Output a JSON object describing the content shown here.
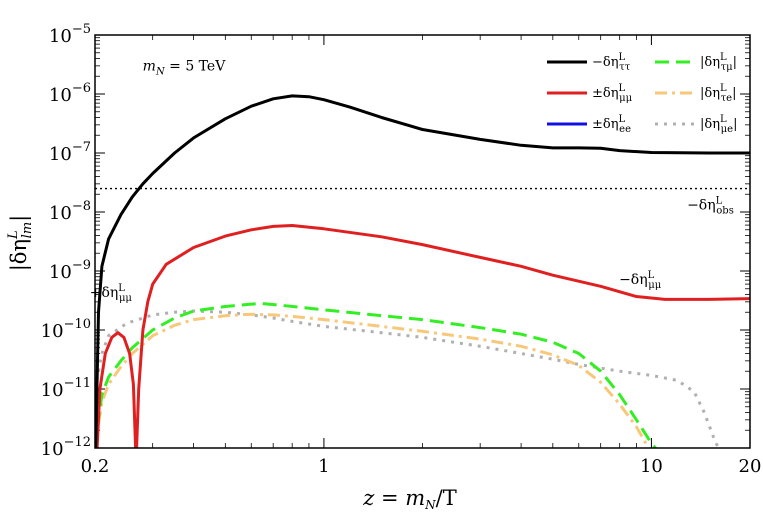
{
  "chart_data": {
    "type": "line",
    "title": "",
    "xlabel": "z = m_N/T",
    "ylabel": "|δη^L_lm|",
    "x_scale": "log",
    "y_scale": "log",
    "xlim": [
      0.2,
      20
    ],
    "ylim": [
      1e-12,
      1e-05
    ],
    "grid": false,
    "legend_position": "top-right",
    "x_ticks": [
      0.2,
      1,
      10,
      20
    ],
    "x_tick_labels": [
      "0.2",
      "1",
      "10",
      "20"
    ],
    "y_ticks": [
      1e-12,
      1e-11,
      1e-10,
      1e-09,
      1e-08,
      1e-07,
      1e-06,
      1e-05
    ],
    "y_tick_labels": [
      {
        "base": "10",
        "exp": "−12"
      },
      {
        "base": "10",
        "exp": "−11"
      },
      {
        "base": "10",
        "exp": "−10"
      },
      {
        "base": "10",
        "exp": "−9"
      },
      {
        "base": "10",
        "exp": "−8"
      },
      {
        "base": "10",
        "exp": "−7"
      },
      {
        "base": "10",
        "exp": "−6"
      },
      {
        "base": "10",
        "exp": "−5"
      }
    ],
    "annotations": [
      {
        "text": "m_N = 5 TeV",
        "x": 0.3,
        "y": 2.5e-06
      },
      {
        "text": "−δη^L_obs",
        "x": 15,
        "y": 1.1e-08
      },
      {
        "text": "−δη^L_μμ",
        "x": 9.3,
        "y": 6e-10
      },
      {
        "text": "+δη^L_μμ",
        "x": 0.225,
        "y": 3.6e-10
      }
    ],
    "series": [
      {
        "name": "−δη^L_ττ",
        "color": "#000000",
        "width": 3,
        "dash": "",
        "points": [
          [
            0.201,
            1e-12
          ],
          [
            0.205,
            2e-10
          ],
          [
            0.21,
            1.2e-09
          ],
          [
            0.22,
            3.5e-09
          ],
          [
            0.24,
            9e-09
          ],
          [
            0.26,
            1.8e-08
          ],
          [
            0.28,
            3e-08
          ],
          [
            0.3,
            4.5e-08
          ],
          [
            0.35,
            1e-07
          ],
          [
            0.4,
            1.8e-07
          ],
          [
            0.5,
            3.8e-07
          ],
          [
            0.6,
            6.2e-07
          ],
          [
            0.7,
            8.3e-07
          ],
          [
            0.8,
            9.3e-07
          ],
          [
            0.9,
            9e-07
          ],
          [
            1.0,
            8e-07
          ],
          [
            1.2,
            6e-07
          ],
          [
            1.5,
            4e-07
          ],
          [
            2,
            2.5e-07
          ],
          [
            3,
            1.7e-07
          ],
          [
            4,
            1.35e-07
          ],
          [
            5,
            1.22e-07
          ],
          [
            6,
            1.22e-07
          ],
          [
            7,
            1.2e-07
          ],
          [
            8,
            1.1e-07
          ],
          [
            10,
            1.02e-07
          ],
          [
            15,
            1e-07
          ],
          [
            20,
            1e-07
          ]
        ]
      },
      {
        "name": "±δη^L_μμ",
        "color": "#e02020",
        "width": 3,
        "dash": "",
        "points": [
          [
            0.203,
            1e-12
          ],
          [
            0.207,
            1e-11
          ],
          [
            0.215,
            4e-11
          ],
          [
            0.225,
            7.5e-11
          ],
          [
            0.235,
            9e-11
          ],
          [
            0.245,
            7.5e-11
          ],
          [
            0.255,
            4e-11
          ],
          [
            0.262,
            1.2e-11
          ],
          [
            0.266,
            1e-12
          ],
          [
            0.268,
            1e-12
          ],
          [
            0.272,
            1e-11
          ],
          [
            0.28,
            1e-10
          ],
          [
            0.29,
            3e-10
          ],
          [
            0.3,
            6e-10
          ],
          [
            0.33,
            1.3e-09
          ],
          [
            0.4,
            2.5e-09
          ],
          [
            0.5,
            3.9e-09
          ],
          [
            0.6,
            5e-09
          ],
          [
            0.7,
            5.7e-09
          ],
          [
            0.8,
            5.9e-09
          ],
          [
            1.0,
            5.2e-09
          ],
          [
            1.5,
            3.8e-09
          ],
          [
            2,
            2.8e-09
          ],
          [
            3,
            1.7e-09
          ],
          [
            4,
            1.2e-09
          ],
          [
            5,
            8.5e-10
          ],
          [
            7,
            5.5e-10
          ],
          [
            9,
            3.7e-10
          ],
          [
            11,
            3.3e-10
          ],
          [
            15,
            3.3e-10
          ],
          [
            20,
            3.4e-10
          ]
        ]
      },
      {
        "name": "±δη^L_ee",
        "color": "#1010e0",
        "width": 3,
        "dash": "",
        "points": []
      },
      {
        "name": "|δη^L_τμ|",
        "color": "#33ee22",
        "width": 3,
        "dash": "14,7",
        "points": [
          [
            0.202,
            1e-12
          ],
          [
            0.205,
            3e-12
          ],
          [
            0.21,
            8e-12
          ],
          [
            0.22,
            1.6e-11
          ],
          [
            0.24,
            3e-11
          ],
          [
            0.26,
            5e-11
          ],
          [
            0.3,
            1e-10
          ],
          [
            0.35,
            1.6e-10
          ],
          [
            0.4,
            2.1e-10
          ],
          [
            0.5,
            2.5e-10
          ],
          [
            0.6,
            2.75e-10
          ],
          [
            0.65,
            2.8e-10
          ],
          [
            0.75,
            2.6e-10
          ],
          [
            1.0,
            2.2e-10
          ],
          [
            1.5,
            1.75e-10
          ],
          [
            2,
            1.5e-10
          ],
          [
            3,
            1.1e-10
          ],
          [
            4,
            8.5e-11
          ],
          [
            5,
            6.2e-11
          ],
          [
            6,
            4e-11
          ],
          [
            7,
            2e-11
          ],
          [
            8,
            8e-12
          ],
          [
            9,
            3e-12
          ],
          [
            10,
            1.2e-12
          ],
          [
            10.3,
            1e-12
          ]
        ]
      },
      {
        "name": "|δη^L_τe|",
        "color": "#f7c87a",
        "width": 3,
        "dash": "12,5,3,5",
        "points": [
          [
            0.202,
            1e-12
          ],
          [
            0.205,
            2.5e-12
          ],
          [
            0.21,
            6e-12
          ],
          [
            0.22,
            1.2e-11
          ],
          [
            0.24,
            2.4e-11
          ],
          [
            0.26,
            4e-11
          ],
          [
            0.3,
            8e-11
          ],
          [
            0.35,
            1.2e-10
          ],
          [
            0.4,
            1.5e-10
          ],
          [
            0.5,
            1.75e-10
          ],
          [
            0.6,
            1.85e-10
          ],
          [
            0.7,
            1.8e-10
          ],
          [
            0.8,
            1.7e-10
          ],
          [
            1.0,
            1.5e-10
          ],
          [
            1.5,
            1.15e-10
          ],
          [
            2,
            9.5e-11
          ],
          [
            3,
            7e-11
          ],
          [
            4,
            5.3e-11
          ],
          [
            5,
            3.8e-11
          ],
          [
            6,
            2.5e-11
          ],
          [
            7,
            1.3e-11
          ],
          [
            8,
            5.5e-12
          ],
          [
            9,
            2.3e-12
          ],
          [
            9.8,
            1e-12
          ]
        ]
      },
      {
        "name": "|δη^L_μe|",
        "color": "#b0b0b0",
        "width": 3,
        "dash": "3,6",
        "points": [
          [
            0.2,
            1e-11
          ],
          [
            0.21,
            4e-11
          ],
          [
            0.22,
            8e-11
          ],
          [
            0.25,
            1.3e-10
          ],
          [
            0.3,
            1.8e-10
          ],
          [
            0.35,
            2e-10
          ],
          [
            0.4,
            2.1e-10
          ],
          [
            0.5,
            2e-10
          ],
          [
            0.6,
            1.8e-10
          ],
          [
            0.7,
            1.6e-10
          ],
          [
            0.8,
            1.4e-10
          ],
          [
            1.0,
            1.15e-10
          ],
          [
            1.5,
            9e-11
          ],
          [
            2,
            7.5e-11
          ],
          [
            3,
            5.3e-11
          ],
          [
            4,
            4e-11
          ],
          [
            5,
            3.2e-11
          ],
          [
            6,
            2.6e-11
          ],
          [
            8,
            2e-11
          ],
          [
            10,
            1.7e-11
          ],
          [
            12,
            1.4e-11
          ],
          [
            13.5,
            9e-12
          ],
          [
            14.5,
            4e-12
          ],
          [
            15.5,
            1.5e-12
          ],
          [
            16,
            1e-12
          ]
        ]
      }
    ],
    "reference_lines": [
      {
        "label": "−δη^L_obs",
        "y": 2.5e-08,
        "color": "#000000",
        "dash": "2,3"
      }
    ]
  }
}
